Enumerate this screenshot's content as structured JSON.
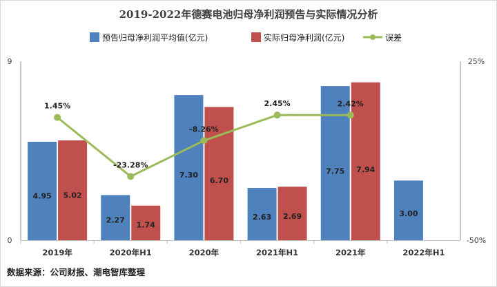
{
  "chart_data": {
    "type": "bar",
    "title": "2019-2022年德赛电池归母净利润预告与实际情况分析",
    "categories": [
      "2019年",
      "2020年H1",
      "2020年",
      "2021年H1",
      "2021年",
      "2022年H1"
    ],
    "series": [
      {
        "name": "预告归母净利润平均值(亿元)",
        "type": "bar",
        "color": "#4F81BD",
        "values": [
          4.95,
          2.27,
          7.3,
          2.63,
          7.75,
          3.0
        ],
        "labels": [
          "4.95",
          "2.27",
          "7.30",
          "2.63",
          "7.75",
          "3.00"
        ]
      },
      {
        "name": "实际归母净利润(亿元)",
        "type": "bar",
        "color": "#C0504D",
        "values": [
          5.02,
          1.74,
          6.7,
          2.69,
          7.94,
          null
        ],
        "labels": [
          "5.02",
          "1.74",
          "6.70",
          "2.69",
          "7.94",
          ""
        ]
      },
      {
        "name": "误差",
        "type": "line",
        "axis": "secondary",
        "color": "#9BBB59",
        "values": [
          1.45,
          -23.28,
          -8.26,
          2.45,
          2.42,
          null
        ],
        "labels": [
          "1.45%",
          "-23.28%",
          "-8.26%",
          "2.45%",
          "2.42%",
          ""
        ]
      }
    ],
    "y_axis": {
      "min": 0,
      "max": 9,
      "ticks": [
        "0",
        "9"
      ]
    },
    "y2_axis": {
      "min": -50,
      "max": 25,
      "ticks": [
        "-50%",
        "25%"
      ]
    },
    "legend_position": "top"
  },
  "source": "数据来源：公司财报、潮电智库整理"
}
